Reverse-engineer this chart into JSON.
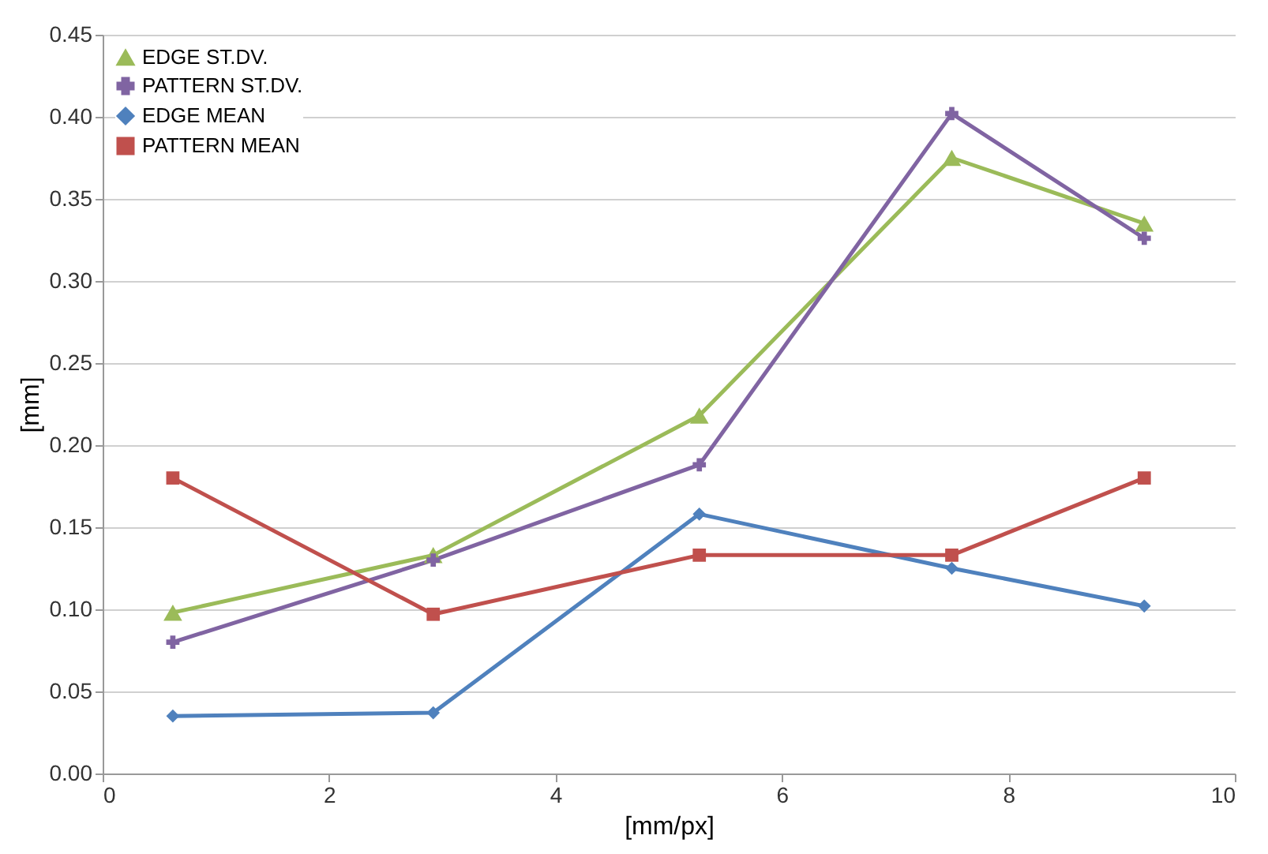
{
  "chart_data": {
    "type": "line",
    "xlabel": "[mm/px]",
    "ylabel": "[mm]",
    "x": [
      0.62,
      2.92,
      5.27,
      7.5,
      9.2
    ],
    "series": [
      {
        "name": "EDGE ST.DV.",
        "color": "#9bbb59",
        "marker": "triangle",
        "values": [
          0.098,
          0.133,
          0.218,
          0.375,
          0.335
        ]
      },
      {
        "name": "PATTERN ST.DV.",
        "color": "#8064a2",
        "marker": "cross",
        "values": [
          0.08,
          0.13,
          0.188,
          0.402,
          0.326
        ]
      },
      {
        "name": "EDGE MEAN",
        "color": "#4f81bd",
        "marker": "diamond",
        "values": [
          0.035,
          0.037,
          0.158,
          0.125,
          0.102
        ]
      },
      {
        "name": "PATTERN MEAN",
        "color": "#c0504d",
        "marker": "square",
        "values": [
          0.18,
          0.097,
          0.133,
          0.133,
          0.18
        ]
      }
    ],
    "xlim": [
      0,
      10
    ],
    "xticks": [
      0,
      2,
      4,
      6,
      8,
      10
    ],
    "ylim": [
      0,
      0.45
    ],
    "yticks": [
      {
        "value": 0,
        "label": "0.00"
      },
      {
        "value": 0.05,
        "label": "0.05"
      },
      {
        "value": 0.1,
        "label": "0.10"
      },
      {
        "value": 0.15,
        "label": "0.15"
      },
      {
        "value": 0.2,
        "label": "0.20"
      },
      {
        "value": 0.25,
        "label": "0.25"
      },
      {
        "value": 0.3,
        "label": "0.30"
      },
      {
        "value": 0.35,
        "label": "0.35"
      },
      {
        "value": 0.4,
        "label": "0.40"
      },
      {
        "value": 0.45,
        "label": "0.45"
      }
    ],
    "grid": "y",
    "legend": "top left"
  }
}
